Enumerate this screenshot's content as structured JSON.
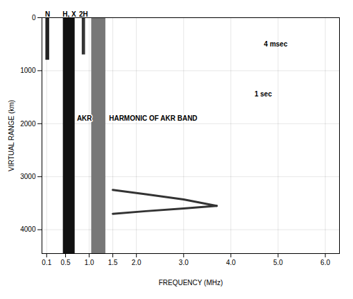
{
  "chart_data": {
    "type": "ionogram",
    "xlabel": "FREQUENCY (MHz)",
    "ylabel": "VIRTUAL RANGE (km)",
    "xlim": [
      0,
      6.3
    ],
    "ylim": [
      0,
      4450
    ],
    "xticks": [
      {
        "value": 0.1,
        "label": "0.1"
      },
      {
        "value": 0.5,
        "label": "0.5"
      },
      {
        "value": 1,
        "label": "1.0"
      },
      {
        "value": 1.5,
        "label": "1.5"
      },
      {
        "value": 2,
        "label": "2.0"
      },
      {
        "value": 3,
        "label": "3.0"
      },
      {
        "value": 4,
        "label": "4.0"
      },
      {
        "value": 5,
        "label": "5.0"
      },
      {
        "value": 6,
        "label": "6.0"
      }
    ],
    "yticks": [
      0,
      1000,
      2000,
      3000,
      4000
    ],
    "grid": true,
    "bands": {
      "x1": [
        0.08,
        0.45,
        0.85,
        1.05
      ],
      "x2": [
        0.16,
        0.7,
        0.92,
        1.35
      ],
      "y1": [
        0,
        0,
        0,
        0
      ],
      "y2": [
        800,
        4450,
        700,
        4450
      ],
      "colors": [
        "#222222",
        "#111111",
        "#333333",
        "#777777"
      ]
    },
    "series": [
      {
        "color": "#333333",
        "x": [
          1.5,
          2.2,
          3.0,
          3.7
        ],
        "values": [
          3250,
          3330,
          3430,
          3550
        ]
      },
      {
        "color": "#333333",
        "x": [
          1.5,
          2.2,
          3.0,
          3.7
        ],
        "values": [
          3700,
          3650,
          3600,
          3550
        ]
      }
    ],
    "top_labels": [
      {
        "text": "N",
        "x": 0.12
      },
      {
        "text": "H, X",
        "x": 0.58
      },
      {
        "text": "2H",
        "x": 0.88
      }
    ],
    "annotations": [
      {
        "text": "AKR",
        "x": 0.74,
        "y": 1900
      },
      {
        "text": "HARMONIC OF AKR BAND",
        "x": 1.42,
        "y": 1900
      },
      {
        "text": "4 msec",
        "x": 4.7,
        "y": 500
      },
      {
        "text": "1 sec",
        "x": 4.5,
        "y": 1450
      }
    ]
  }
}
